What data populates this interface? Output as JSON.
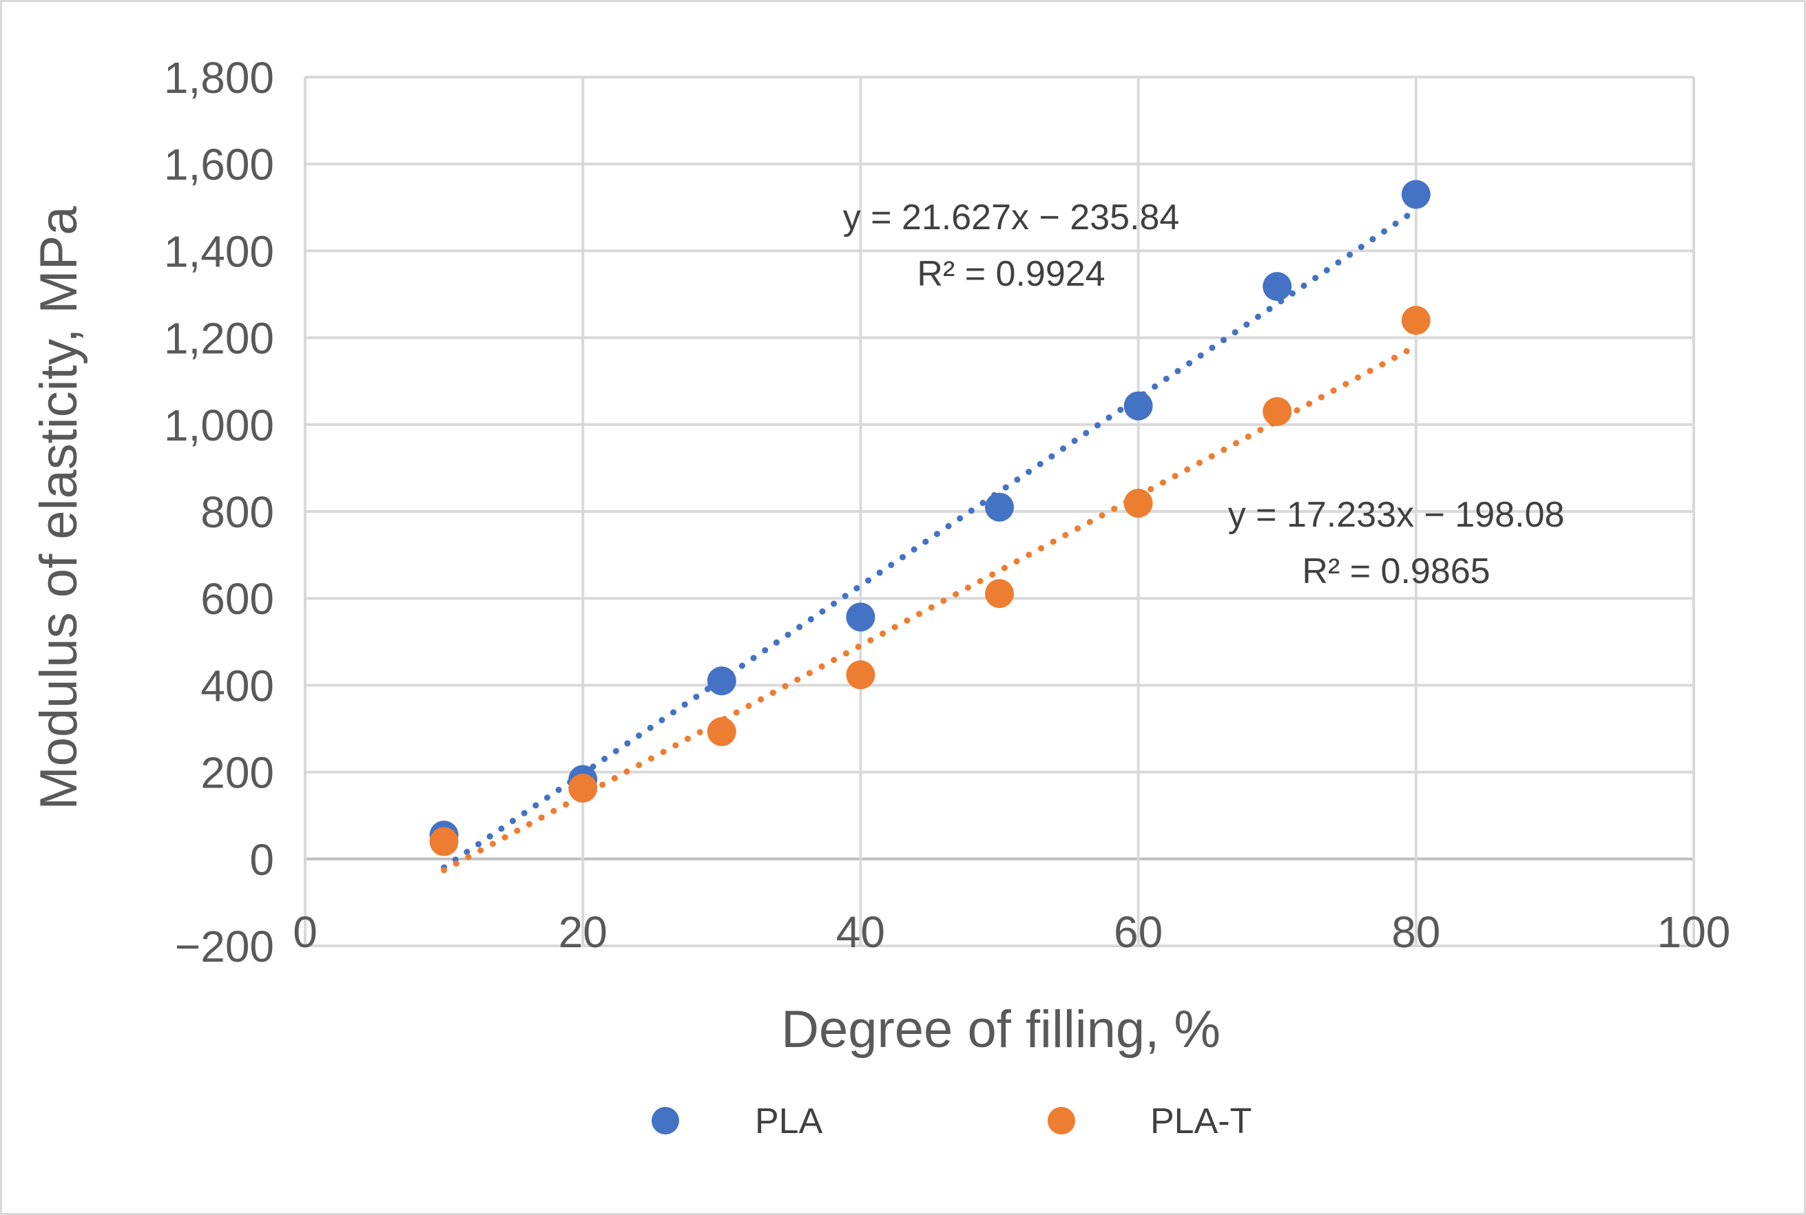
{
  "chart_data": {
    "type": "scatter",
    "title": "",
    "xlabel": "Degree of filling, %",
    "ylabel": "Modulus of elasticity, MPa",
    "xlim": [
      0,
      100
    ],
    "ylim": [
      -200,
      1800
    ],
    "xticks": [
      0,
      20,
      40,
      60,
      80,
      100
    ],
    "xtick_labels": [
      "0",
      "20",
      "40",
      "60",
      "80",
      "100"
    ],
    "yticks": [
      -200,
      0,
      200,
      400,
      600,
      800,
      1000,
      1200,
      1400,
      1600,
      1800
    ],
    "ytick_labels": [
      "−200",
      "0",
      "200",
      "400",
      "600",
      "800",
      "1,000",
      "1,200",
      "1,400",
      "1,600",
      "1,800"
    ],
    "grid": true,
    "legend_position": "bottom",
    "series": [
      {
        "name": "PLA",
        "color": "#4472c4",
        "x": [
          10,
          20,
          30,
          40,
          50,
          60,
          70,
          80
        ],
        "y": [
          55,
          183,
          410,
          557,
          810,
          1043,
          1318,
          1530
        ],
        "trendline": {
          "type": "linear",
          "slope": 21.627,
          "intercept": -235.84,
          "x_range": [
            10,
            80
          ],
          "equation": "y = 21.627x − 235.84",
          "r_squared": "R² = 0.9924"
        }
      },
      {
        "name": "PLA-T",
        "color": "#ed7d31",
        "x": [
          10,
          20,
          30,
          40,
          50,
          60,
          70,
          80
        ],
        "y": [
          40,
          163,
          293,
          424,
          611,
          819,
          1030,
          1240
        ],
        "trendline": {
          "type": "linear",
          "slope": 17.233,
          "intercept": -198.08,
          "x_range": [
            10,
            80
          ],
          "equation": "y = 17.233x − 198.08",
          "r_squared": "R² = 0.9865"
        }
      }
    ]
  }
}
